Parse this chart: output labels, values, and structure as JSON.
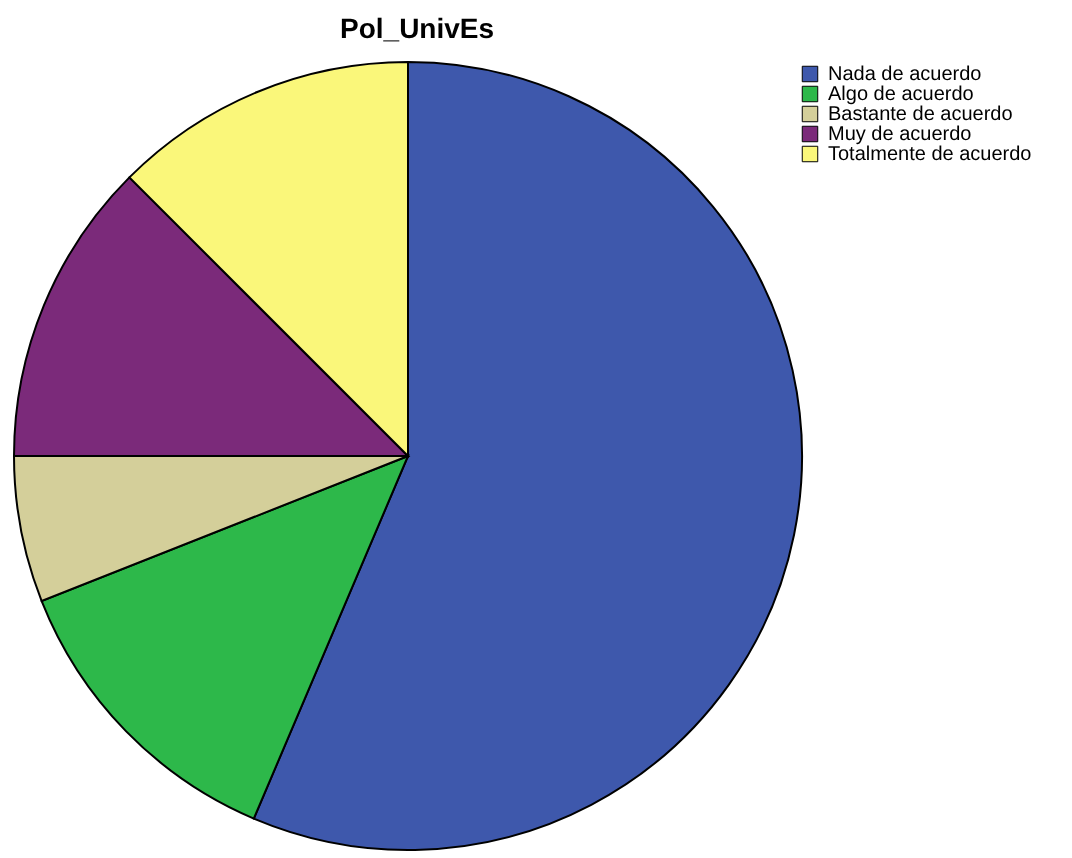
{
  "chart_data": {
    "type": "pie",
    "title": "Pol_UnivEs",
    "categories": [
      "Nada de acuerdo",
      "Algo de acuerdo",
      "Bastante de acuerdo",
      "Muy de acuerdo",
      "Totalmente de acuerdo"
    ],
    "values": [
      56.4,
      12.6,
      6.0,
      12.5,
      12.5
    ],
    "colors": [
      "#3e58ac",
      "#2db84a",
      "#d4cf9a",
      "#7b2a7a",
      "#faf77a"
    ],
    "legend": "top right"
  }
}
